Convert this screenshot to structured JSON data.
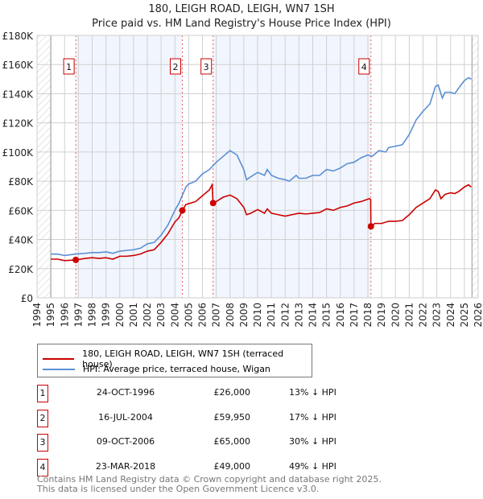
{
  "title": "180, LEIGH ROAD, LEIGH, WN7 1SH",
  "subtitle": "Price paid vs. HM Land Registry's House Price Index (HPI)",
  "chart_data": {
    "type": "line",
    "title": "180, LEIGH ROAD, LEIGH, WN7 1SH",
    "subtitle": "Price paid vs. HM Land Registry's House Price Index (HPI)",
    "xlim": [
      1994,
      2026
    ],
    "ylim": [
      0,
      180000
    ],
    "x_ticks": [
      "1994",
      "1995",
      "1996",
      "1997",
      "1998",
      "1999",
      "2000",
      "2001",
      "2002",
      "2003",
      "2004",
      "2005",
      "2006",
      "2007",
      "2008",
      "2009",
      "2010",
      "2011",
      "2012",
      "2013",
      "2014",
      "2015",
      "2016",
      "2017",
      "2018",
      "2019",
      "2020",
      "2021",
      "2022",
      "2023",
      "2024",
      "2025",
      "2026"
    ],
    "y_ticks": [
      {
        "v": 0,
        "label": "£0"
      },
      {
        "v": 20000,
        "label": "£20K"
      },
      {
        "v": 40000,
        "label": "£40K"
      },
      {
        "v": 60000,
        "label": "£60K"
      },
      {
        "v": 80000,
        "label": "£80K"
      },
      {
        "v": 100000,
        "label": "£100K"
      },
      {
        "v": 120000,
        "label": "£120K"
      },
      {
        "v": 140000,
        "label": "£140K"
      },
      {
        "v": 160000,
        "label": "£160K"
      },
      {
        "v": 180000,
        "label": "£180K"
      }
    ],
    "grid": true,
    "data_range": [
      1995,
      2025.55
    ],
    "shaded_ranges": [
      [
        1996.81,
        2004.54
      ],
      [
        2006.77,
        2018.22
      ]
    ],
    "series": [
      {
        "name": "180, LEIGH ROAD, LEIGH, WN7 1SH (terraced house)",
        "color": "#cc0000",
        "x": [
          1995,
          1995.5,
          1996,
          1996.81,
          1997.5,
          1998,
          1998.5,
          1999,
          1999.5,
          2000,
          2000.5,
          2001,
          2001.5,
          2002,
          2002.5,
          2003,
          2003.5,
          2004,
          2004.3,
          2004.54,
          2004.8,
          2005.5,
          2006,
          2006.5,
          2006.7,
          2006.77,
          2007,
          2007.5,
          2008,
          2008.5,
          2009,
          2009.2,
          2009.5,
          2010,
          2010.5,
          2010.7,
          2011,
          2011.5,
          2012,
          2012.5,
          2013,
          2013.5,
          2014,
          2014.5,
          2015,
          2015.5,
          2016,
          2016.5,
          2017,
          2017.5,
          2018.1,
          2018.2,
          2018.22,
          2018.5,
          2019,
          2019.5,
          2020,
          2020.5,
          2021,
          2021.5,
          2022,
          2022.5,
          2022.9,
          2023.1,
          2023.3,
          2023.6,
          2024,
          2024.3,
          2024.6,
          2025,
          2025.3,
          2025.5
        ],
        "y": [
          26500,
          26500,
          25500,
          26000,
          27000,
          27500,
          27000,
          27500,
          26500,
          28500,
          28500,
          29000,
          30000,
          32000,
          33000,
          38000,
          44000,
          52000,
          55000,
          59950,
          64000,
          66000,
          70000,
          74000,
          77500,
          65000,
          66000,
          69000,
          70500,
          68000,
          62000,
          57000,
          58000,
          60500,
          58000,
          61000,
          58000,
          57000,
          56000,
          57000,
          58000,
          57500,
          58000,
          58500,
          61000,
          60000,
          62000,
          63000,
          65000,
          66000,
          68000,
          67500,
          49000,
          51000,
          51000,
          52500,
          52500,
          53000,
          57000,
          62000,
          65000,
          68000,
          74000,
          73000,
          68000,
          71000,
          72000,
          71500,
          73000,
          76000,
          77500,
          76000
        ]
      },
      {
        "name": "HPI: Average price, terraced house, Wigan",
        "color": "#5b8fd4",
        "x": [
          1995,
          1995.5,
          1996,
          1996.8,
          1997.5,
          1998,
          1998.5,
          1999,
          1999.5,
          2000,
          2000.5,
          2001,
          2001.5,
          2002,
          2002.5,
          2003,
          2003.5,
          2004,
          2004.3,
          2004.8,
          2005,
          2005.5,
          2006,
          2006.5,
          2007,
          2007.5,
          2008,
          2008.5,
          2009,
          2009.2,
          2009.5,
          2010,
          2010.5,
          2010.7,
          2011,
          2011.5,
          2012,
          2012.3,
          2012.8,
          2013,
          2013.5,
          2014,
          2014.5,
          2015,
          2015.5,
          2016,
          2016.5,
          2017,
          2017.5,
          2018,
          2018.3,
          2018.8,
          2019.3,
          2019.5,
          2020,
          2020.5,
          2021,
          2021.5,
          2022,
          2022.5,
          2022.9,
          2023.1,
          2023.4,
          2023.6,
          2024,
          2024.3,
          2024.6,
          2025,
          2025.3,
          2025.5
        ],
        "y": [
          30000,
          30000,
          29000,
          30000,
          30500,
          31000,
          31000,
          31500,
          30500,
          32000,
          32500,
          33000,
          34000,
          37000,
          38000,
          43000,
          50000,
          60000,
          65000,
          76000,
          78000,
          80000,
          85000,
          88000,
          93000,
          97000,
          101000,
          98000,
          88000,
          81000,
          83000,
          86000,
          84000,
          88000,
          84000,
          82000,
          81000,
          80000,
          84000,
          82000,
          82000,
          84000,
          84000,
          88000,
          87000,
          89000,
          92000,
          93000,
          96000,
          98000,
          97000,
          101000,
          100000,
          103000,
          104000,
          105000,
          112000,
          122000,
          128000,
          133000,
          145000,
          146000,
          137000,
          141000,
          141000,
          140000,
          144000,
          149000,
          151000,
          150000
        ]
      }
    ],
    "sales": [
      {
        "n": "1",
        "x": 1996.81,
        "price": 26000
      },
      {
        "n": "2",
        "x": 2004.54,
        "price": 59950
      },
      {
        "n": "3",
        "x": 2006.77,
        "price": 65000
      },
      {
        "n": "4",
        "x": 2018.22,
        "price": 49000
      }
    ],
    "legend_placement": "below"
  },
  "legend": {
    "property": "180, LEIGH ROAD, LEIGH, WN7 1SH (terraced house)",
    "hpi": "HPI: Average price, terraced house, Wigan"
  },
  "transactions": [
    {
      "n": "1",
      "date": "24-OCT-1996",
      "price": "£26,000",
      "hpi": "13% ↓ HPI"
    },
    {
      "n": "2",
      "date": "16-JUL-2004",
      "price": "£59,950",
      "hpi": "17% ↓ HPI"
    },
    {
      "n": "3",
      "date": "09-OCT-2006",
      "price": "£65,000",
      "hpi": "30% ↓ HPI"
    },
    {
      "n": "4",
      "date": "23-MAR-2018",
      "price": "£49,000",
      "hpi": "49% ↓ HPI"
    }
  ],
  "footer": {
    "line1": "Contains HM Land Registry data © Crown copyright and database right 2025.",
    "line2": "This data is licensed under the Open Government Licence v3.0."
  }
}
